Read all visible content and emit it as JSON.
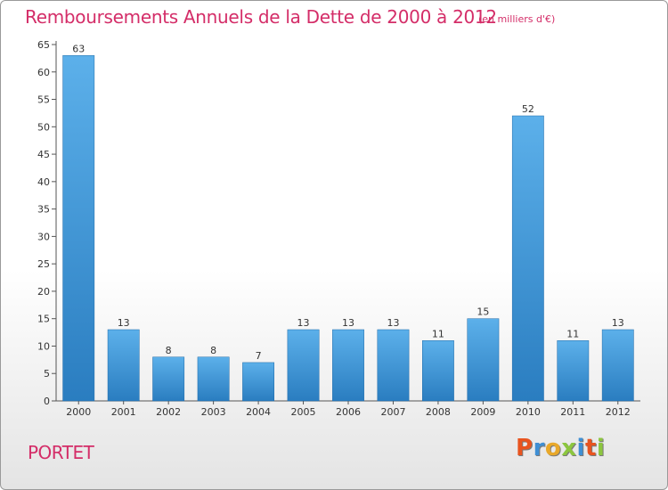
{
  "header": {
    "title": "Remboursements Annuels de la Dette de 2000 à 2012",
    "unit": "(en milliers d'€)"
  },
  "footer": {
    "commune": "PORTET",
    "logo_text": "Proxiti"
  },
  "colors": {
    "title": "#d42d68",
    "bar_light": "#5cb0ea",
    "bar_dark": "#2a7dc0",
    "logo_letters": [
      "#e8541f",
      "#3f8fd4",
      "#e8a82a",
      "#8cc63f",
      "#3f8fd4",
      "#e8541f",
      "#8cc63f"
    ]
  },
  "chart_data": {
    "type": "bar",
    "title": "Remboursements Annuels de la Dette de 2000 à 2012",
    "xlabel": "",
    "ylabel": "",
    "categories": [
      "2000",
      "2001",
      "2002",
      "2003",
      "2004",
      "2005",
      "2006",
      "2007",
      "2008",
      "2009",
      "2010",
      "2011",
      "2012"
    ],
    "values": [
      63,
      13,
      8,
      8,
      7,
      13,
      13,
      13,
      11,
      15,
      52,
      11,
      13
    ],
    "ylim": [
      0,
      65
    ],
    "yticks": [
      0,
      5,
      10,
      15,
      20,
      25,
      30,
      35,
      40,
      45,
      50,
      55,
      60,
      65
    ],
    "grid": false,
    "data_labels": true
  }
}
